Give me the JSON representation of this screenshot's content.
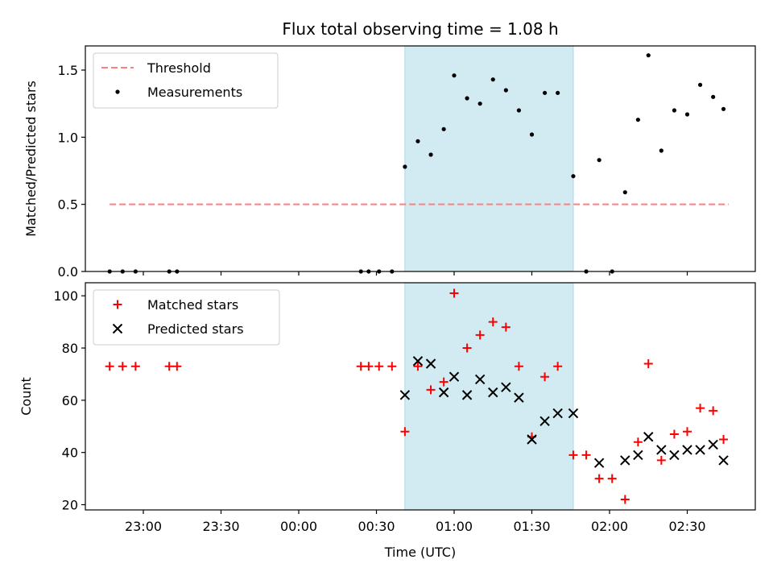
{
  "title": "Flux total observing time = 1.08 h",
  "xlabel": "Time (UTC)",
  "x_ticks": [
    "23:00",
    "23:30",
    "00:00",
    "00:30",
    "01:00",
    "01:30",
    "02:00",
    "02:30"
  ],
  "colors": {
    "threshold": "#ff7f7f",
    "measurements": "#000000",
    "matched": "#ff0000",
    "predicted": "#000000",
    "shade": "#add8e6"
  },
  "chart_data": [
    {
      "type": "scatter",
      "ylabel": "Matched/Predicted stars",
      "ylim": [
        0,
        1.68
      ],
      "y_ticks": [
        "0.0",
        "0.5",
        "1.0",
        "1.5"
      ],
      "grid": false,
      "legend_position": "top-left",
      "shaded_span": {
        "from": "00:41",
        "to": "01:46"
      },
      "series": [
        {
          "name": "Threshold",
          "style": "dashed-line",
          "x": [
            "22:47",
            "02:46"
          ],
          "y": [
            0.5,
            0.5
          ]
        },
        {
          "name": "Measurements",
          "style": "dots",
          "x": [
            "22:47",
            "22:52",
            "22:57",
            "23:10",
            "23:13",
            "00:24",
            "00:27",
            "00:31",
            "00:36",
            "00:41",
            "00:46",
            "00:51",
            "00:56",
            "01:00",
            "01:05",
            "01:10",
            "01:15",
            "01:20",
            "01:25",
            "01:30",
            "01:35",
            "01:40",
            "01:46",
            "01:51",
            "01:56",
            "02:01",
            "02:06",
            "02:11",
            "02:15",
            "02:20",
            "02:25",
            "02:30",
            "02:35",
            "02:40",
            "02:44"
          ],
          "y": [
            0,
            0,
            0,
            0,
            0,
            0,
            0,
            0,
            0,
            0.78,
            0.97,
            0.87,
            1.06,
            1.46,
            1.29,
            1.25,
            1.43,
            1.35,
            1.2,
            1.02,
            1.33,
            1.33,
            0.71,
            0,
            0.83,
            0,
            0.59,
            1.13,
            1.61,
            0.9,
            1.2,
            1.17,
            1.39,
            1.3,
            1.21
          ]
        }
      ]
    },
    {
      "type": "scatter",
      "ylabel": "Count",
      "ylim": [
        18,
        105
      ],
      "y_ticks": [
        "20",
        "40",
        "60",
        "80",
        "100"
      ],
      "grid": false,
      "legend_position": "top-left",
      "shaded_span": {
        "from": "00:41",
        "to": "01:46"
      },
      "series": [
        {
          "name": "Matched stars",
          "marker": "plus",
          "x": [
            "22:47",
            "22:52",
            "22:57",
            "23:10",
            "23:13",
            "00:24",
            "00:27",
            "00:31",
            "00:36",
            "00:41",
            "00:46",
            "00:51",
            "00:56",
            "01:00",
            "01:05",
            "01:10",
            "01:15",
            "01:20",
            "01:25",
            "01:30",
            "01:35",
            "01:40",
            "01:46",
            "01:51",
            "01:56",
            "02:01",
            "02:06",
            "02:11",
            "02:15",
            "02:20",
            "02:25",
            "02:30",
            "02:35",
            "02:40",
            "02:44"
          ],
          "y": [
            73,
            73,
            73,
            73,
            73,
            73,
            73,
            73,
            73,
            48,
            73,
            64,
            67,
            101,
            80,
            85,
            90,
            88,
            73,
            46,
            69,
            73,
            39,
            39,
            30,
            30,
            22,
            44,
            74,
            37,
            47,
            48,
            57,
            56,
            45
          ]
        },
        {
          "name": "Predicted stars",
          "marker": "x",
          "x": [
            "00:41",
            "00:46",
            "00:51",
            "00:56",
            "01:00",
            "01:05",
            "01:10",
            "01:15",
            "01:20",
            "01:25",
            "01:30",
            "01:35",
            "01:40",
            "01:46",
            "01:56",
            "02:06",
            "02:11",
            "02:15",
            "02:20",
            "02:25",
            "02:30",
            "02:35",
            "02:40",
            "02:44"
          ],
          "y": [
            62,
            75,
            74,
            63,
            69,
            62,
            68,
            63,
            65,
            61,
            45,
            52,
            55,
            55,
            36,
            37,
            39,
            46,
            41,
            39,
            41,
            41,
            43,
            37
          ]
        }
      ]
    }
  ]
}
